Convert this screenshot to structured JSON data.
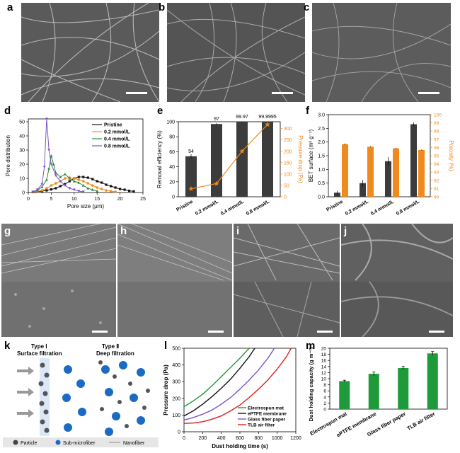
{
  "panel_labels": {
    "a": "a",
    "b": "b",
    "c": "c",
    "d": "d",
    "e": "e",
    "f": "f",
    "g": "g",
    "h": "h",
    "i": "i",
    "j": "j",
    "k": "k",
    "l": "l",
    "m": "m"
  },
  "colors": {
    "pristine": "#111111",
    "c02": "#f08a1c",
    "c04": "#2a8a3a",
    "c08": "#7b52c7",
    "bar_dark": "#3c3c3c",
    "bar_orange": "#f08a1c",
    "bar_green": "#1f9a3a",
    "electrospun": "#1f9a3a",
    "eptfe": "#111111",
    "glass": "#7b52c7",
    "tlb": "#e01b1b"
  },
  "chart_data": [
    {
      "id": "d",
      "type": "line",
      "xlabel": "Pore size (μm)",
      "ylabel": "Pore distribution",
      "xlim": [
        0,
        25
      ],
      "ylim": [
        0,
        52
      ],
      "xticks": [
        0,
        5,
        10,
        15,
        20,
        25
      ],
      "yticks": [
        0,
        10,
        20,
        30,
        40,
        50
      ],
      "legend_position": "top-right",
      "series": [
        {
          "name": "Pristine",
          "x": [
            1,
            2,
            3,
            4,
            5,
            6,
            7,
            8,
            9,
            10,
            11,
            12,
            13,
            14,
            15,
            16,
            17,
            18,
            19,
            20,
            21,
            22,
            23
          ],
          "y": [
            0.3,
            0.6,
            1,
            1.5,
            2.2,
            3,
            4.5,
            6,
            8,
            10,
            11,
            11,
            10.5,
            9.5,
            8,
            7,
            5.5,
            4.5,
            3.5,
            2.5,
            2,
            1.2,
            0.8
          ]
        },
        {
          "name": "0.2 mmol/L",
          "x": [
            1,
            2,
            3,
            4,
            5,
            6,
            7,
            8,
            9,
            10,
            11,
            12,
            13,
            14,
            15,
            16,
            17,
            18,
            19
          ],
          "y": [
            0.3,
            0.8,
            1.5,
            3,
            5,
            6.5,
            8,
            10,
            10.5,
            10,
            9,
            8,
            6.5,
            5,
            3.5,
            2.5,
            1.5,
            1,
            0.5
          ]
        },
        {
          "name": "0.4 mmol/L",
          "x": [
            1,
            2,
            3,
            4,
            4.5,
            5,
            5.5,
            6,
            7,
            8,
            9,
            10,
            11,
            12,
            13,
            14,
            15
          ],
          "y": [
            0.5,
            1.5,
            4,
            9,
            17,
            26,
            20,
            14,
            11,
            13,
            10,
            8,
            7,
            5,
            3,
            2,
            1
          ]
        },
        {
          "name": "0.8 mmol/L",
          "x": [
            1,
            2,
            3,
            3.5,
            4,
            4.5,
            5,
            6,
            7,
            8,
            9,
            10,
            11,
            12
          ],
          "y": [
            0.5,
            2,
            6,
            18,
            52,
            30,
            20,
            12,
            8,
            5,
            3,
            2,
            1,
            0.5
          ]
        }
      ]
    },
    {
      "id": "e",
      "type": "bar",
      "categories": [
        "Pristine",
        "0.2 mmol/L",
        "0.4 mmol/L",
        "0.8 mmol/L"
      ],
      "ylabel": "Removal efficiency (%)",
      "y2label": "Pressure drop (Pa)",
      "ylim": [
        0,
        100
      ],
      "y2lim": [
        0,
        330
      ],
      "yticks": [
        0,
        20,
        40,
        60,
        80,
        100
      ],
      "y2ticks": [
        0,
        50,
        100,
        150,
        200,
        250,
        300
      ],
      "series": [
        {
          "name": "Removal efficiency",
          "values": [
            54,
            97,
            99.97,
            99.9995
          ],
          "errors": [
            3,
            1,
            0.5,
            0.5
          ]
        },
        {
          "name": "Pressure drop",
          "values": [
            35,
            58,
            200,
            318
          ]
        }
      ],
      "data_labels": [
        "54",
        "97",
        "99.97",
        "99.9995"
      ]
    },
    {
      "id": "f",
      "type": "bar",
      "categories": [
        "Pristine",
        "0.2 mmol/L",
        "0.4 mmol/L",
        "0.8 mmol/L"
      ],
      "ylabel": "BET surface (m² g⁻¹)",
      "y2label": "Porosity (%)",
      "ylim": [
        0,
        3.0
      ],
      "y2lim": [
        90,
        100
      ],
      "yticks": [
        "0.0",
        "0.5",
        "1.0",
        "1.5",
        "2.0",
        "2.5",
        "3.0"
      ],
      "y2ticks": [
        90,
        91,
        92,
        93,
        94,
        95,
        96,
        97,
        98,
        99,
        100
      ],
      "series": [
        {
          "name": "BET surface",
          "values": [
            0.15,
            0.5,
            1.3,
            2.65
          ],
          "errors": [
            0.08,
            0.12,
            0.15,
            0.07
          ]
        },
        {
          "name": "Porosity",
          "values": [
            96.4,
            96.1,
            95.9,
            95.7
          ],
          "errors": [
            0.1,
            0.05,
            0.05,
            0.05
          ]
        }
      ]
    },
    {
      "id": "l",
      "type": "line",
      "xlabel": "Dust holding time (s)",
      "ylabel": "Pressure drop (Pa)",
      "xlim": [
        0,
        1200
      ],
      "ylim": [
        0,
        500
      ],
      "xticks": [
        0,
        200,
        400,
        600,
        800,
        1000,
        1200
      ],
      "yticks": [
        0,
        100,
        200,
        300,
        400,
        500
      ],
      "legend_position": "bottom-right",
      "series": [
        {
          "name": "Electrospun mat",
          "x": [
            0,
            100,
            200,
            300,
            400,
            500,
            600,
            700
          ],
          "y": [
            150,
            185,
            225,
            275,
            330,
            385,
            440,
            500
          ]
        },
        {
          "name": "ePTFE membrane",
          "x": [
            0,
            100,
            200,
            300,
            400,
            500,
            600,
            700,
            760
          ],
          "y": [
            95,
            125,
            165,
            210,
            260,
            315,
            380,
            450,
            500
          ]
        },
        {
          "name": "Glass fiber paper",
          "x": [
            0,
            100,
            200,
            300,
            400,
            500,
            600,
            700,
            800,
            900,
            970
          ],
          "y": [
            70,
            85,
            105,
            130,
            165,
            205,
            255,
            310,
            370,
            440,
            500
          ]
        },
        {
          "name": "TLB air filter",
          "x": [
            0,
            100,
            200,
            300,
            400,
            500,
            600,
            700,
            800,
            900,
            1000,
            1100,
            1150
          ],
          "y": [
            50,
            52,
            60,
            75,
            95,
            125,
            160,
            205,
            255,
            310,
            375,
            450,
            500
          ]
        }
      ]
    },
    {
      "id": "m",
      "type": "bar",
      "categories": [
        "Electrospun mat",
        "ePTFE membrane",
        "Glass fiber paper",
        "TLB air filter"
      ],
      "ylabel": "Dust holding capacity (g m⁻²)",
      "ylim": [
        0,
        20
      ],
      "yticks": [
        0,
        2,
        4,
        6,
        8,
        10,
        12,
        14,
        16,
        18,
        20
      ],
      "values": [
        9.2,
        11.6,
        13.5,
        18.3
      ],
      "errors": [
        0.3,
        0.6,
        0.5,
        0.6
      ]
    }
  ],
  "schematic_k": {
    "type1_title": "Type Ⅰ",
    "type1_sub": "Surface filtration",
    "type2_title": "Type Ⅱ",
    "type2_sub": "Deep filtration",
    "legend": {
      "particle": "Particle",
      "sub": "Sub-microfiber",
      "nano": "Nanofiber"
    }
  }
}
